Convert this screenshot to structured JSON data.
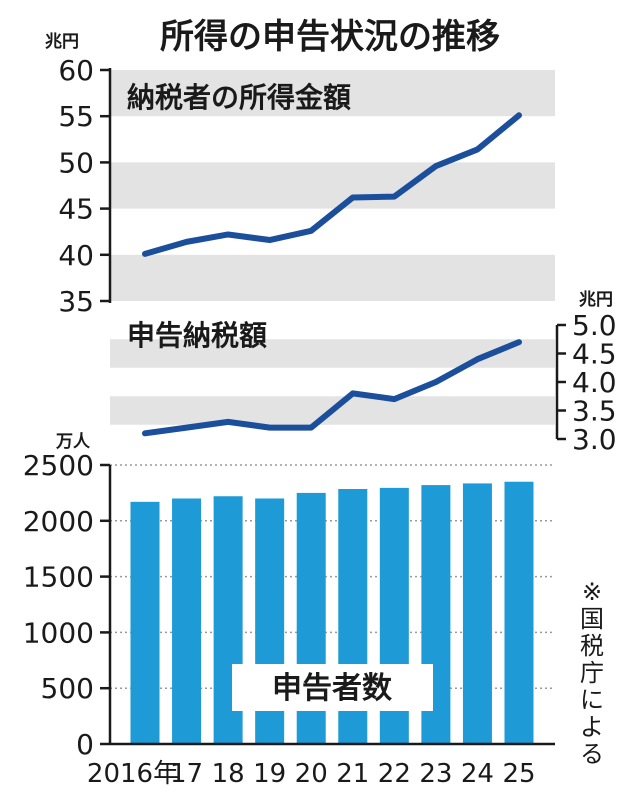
{
  "chart_data": [
    {
      "type": "line",
      "title": "所得の申告状況の推移",
      "subtitle": "納税者の所得金額",
      "ylabel": "兆円",
      "ylim": [
        35,
        60
      ],
      "yticks": [
        "60",
        "55",
        "50",
        "45",
        "40",
        "35"
      ],
      "x": [
        2016,
        2017,
        2018,
        2019,
        2020,
        2021,
        2022,
        2023,
        2024,
        2025
      ],
      "values": [
        40.1,
        41.4,
        42.2,
        41.6,
        42.6,
        46.2,
        46.3,
        49.6,
        51.4,
        55.1
      ]
    },
    {
      "type": "line",
      "subtitle": "申告納税額",
      "ylabel": "兆円",
      "ylim": [
        3.0,
        5.0
      ],
      "yticks": [
        "5.0",
        "4.5",
        "4.0",
        "3.5",
        "3.0"
      ],
      "x": [
        2016,
        2017,
        2018,
        2019,
        2020,
        2021,
        2022,
        2023,
        2024,
        2025
      ],
      "values": [
        3.1,
        3.2,
        3.3,
        3.2,
        3.2,
        3.8,
        3.7,
        4.0,
        4.4,
        4.7
      ]
    },
    {
      "type": "bar",
      "label": "申告者数",
      "ylabel": "万人",
      "ylim": [
        0,
        2500
      ],
      "yticks": [
        "2500",
        "2000",
        "1500",
        "1000",
        "500",
        "0"
      ],
      "categories": [
        "2016年",
        "17",
        "18",
        "19",
        "20",
        "21",
        "22",
        "23",
        "24",
        "25"
      ],
      "values": [
        2170,
        2200,
        2220,
        2200,
        2250,
        2285,
        2295,
        2320,
        2335,
        2350
      ]
    }
  ],
  "note": "※国税庁による",
  "colors": {
    "line": "#1b4f9c",
    "bar": "#1e9ad6",
    "band": "#e3e3e3"
  }
}
